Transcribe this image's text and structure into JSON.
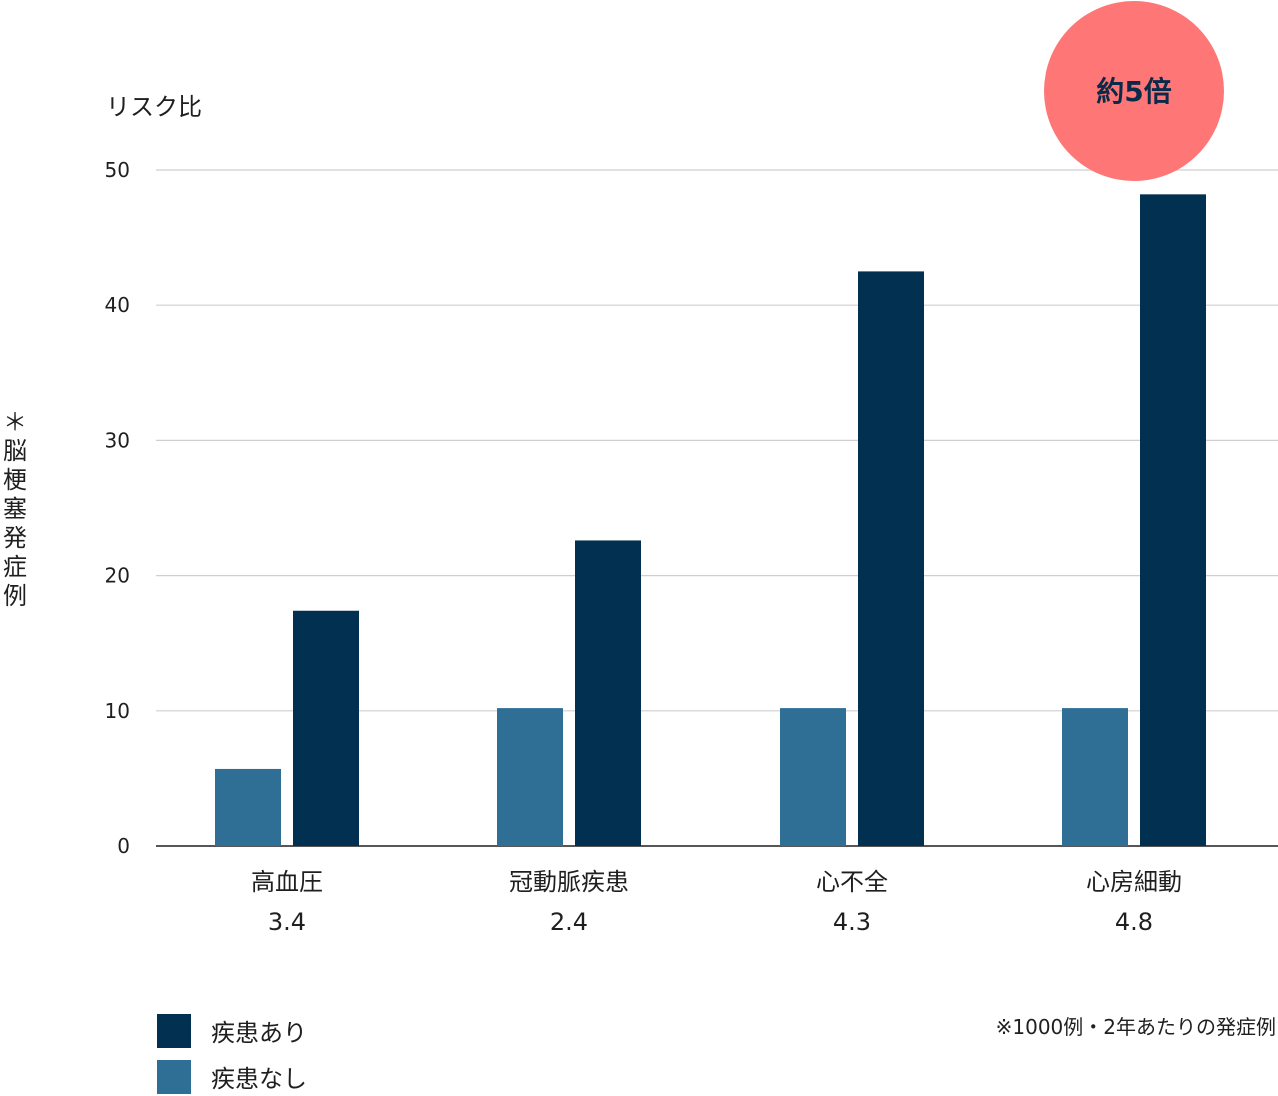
{
  "chart_data": {
    "type": "bar",
    "ylabel": "リスク比",
    "side_label": "＊脳梗塞発症例",
    "ylim": [
      0,
      50
    ],
    "yticks": [
      0,
      10,
      20,
      30,
      40,
      50
    ],
    "grid": true,
    "categories": [
      "高血圧",
      "冠動脈疾患",
      "心不全",
      "心房細動"
    ],
    "risk_ratios": [
      "3.4",
      "2.4",
      "4.3",
      "4.8"
    ],
    "series": [
      {
        "name": "疾患なし",
        "color": "#2f6f96",
        "values": [
          5.7,
          10.2,
          10.2,
          10.2
        ]
      },
      {
        "name": "疾患あり",
        "color": "#023050",
        "values": [
          17.4,
          22.6,
          42.5,
          48.2
        ]
      }
    ],
    "legend_order": [
      "疾患あり",
      "疾患なし"
    ],
    "legend_position": "bottom-left",
    "annotation": {
      "text": "約5倍",
      "color": "#ff7676",
      "category": "心房細動"
    },
    "note": "※1000例・2年あたりの発症例"
  }
}
